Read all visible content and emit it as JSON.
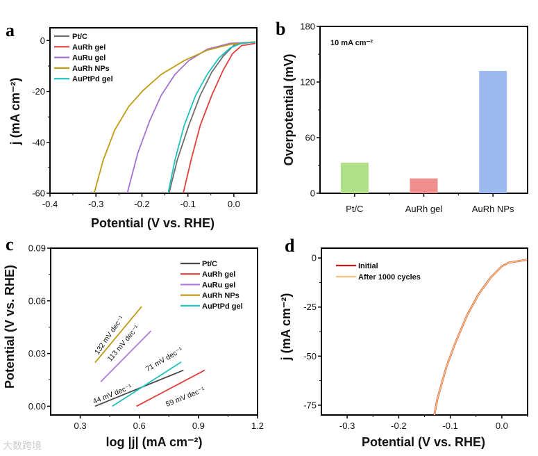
{
  "chart_data": [
    {
      "panel": "a",
      "type": "line",
      "xlabel": "Potential (V vs. RHE)",
      "ylabel": "j (mA cm⁻²)",
      "xlim": [
        -0.4,
        0.05
      ],
      "ylim": [
        -60,
        5
      ],
      "xticks": [
        -0.4,
        -0.3,
        -0.2,
        -0.1,
        0.0
      ],
      "xtick_labels": [
        "-0.4",
        "-0.3",
        "-0.2",
        "-0.1",
        "0.0"
      ],
      "yticks": [
        0,
        -20,
        -40,
        -60
      ],
      "ytick_labels": [
        "0",
        "-20",
        "-40",
        "-60"
      ],
      "legend_position": "top-left",
      "series": [
        {
          "name": "Pt/C",
          "color": "#6e6e6e",
          "x": [
            -0.141,
            -0.123,
            -0.098,
            -0.073,
            -0.048,
            -0.023,
            0.002,
            0.047
          ],
          "y": [
            -60,
            -46.9,
            -33.3,
            -21.5,
            -12.4,
            -6.1,
            -1.5,
            -0.5
          ]
        },
        {
          "name": "AuRh gel",
          "color": "#e0403c",
          "x": [
            -0.11,
            -0.093,
            -0.073,
            -0.048,
            -0.023,
            -0.003,
            0.017,
            0.047
          ],
          "y": [
            -60,
            -46.9,
            -33.3,
            -21.5,
            -11.5,
            -5.2,
            -2.0,
            -1.1
          ]
        },
        {
          "name": "AuRu gel",
          "color": "#a272d0",
          "x": [
            -0.232,
            -0.209,
            -0.183,
            -0.158,
            -0.128,
            -0.098,
            -0.058,
            -0.008,
            0.047
          ],
          "y": [
            -60,
            -44.2,
            -31.5,
            -21.5,
            -13.3,
            -7.9,
            -3.4,
            -1.1,
            -0.6
          ]
        },
        {
          "name": "AuRh NPs",
          "color": "#c09a10",
          "x": [
            -0.304,
            -0.284,
            -0.259,
            -0.229,
            -0.198,
            -0.158,
            -0.108,
            -0.058,
            -0.008,
            0.047
          ],
          "y": [
            -60,
            -46.9,
            -35.1,
            -26.0,
            -19.7,
            -13.3,
            -7.9,
            -3.8,
            -1.5,
            -0.5
          ]
        },
        {
          "name": "AuPtPd gel",
          "color": "#1fc0c0",
          "x": [
            -0.143,
            -0.128,
            -0.108,
            -0.083,
            -0.058,
            -0.033,
            -0.008,
            0.017,
            0.047
          ],
          "y": [
            -60,
            -46.9,
            -33.3,
            -21.5,
            -13.3,
            -7.0,
            -2.9,
            -1.1,
            -0.6
          ]
        }
      ]
    },
    {
      "panel": "b",
      "type": "bar",
      "ylabel": "Overpotential (mV)",
      "annotation": "10 mA cm⁻²",
      "categories": [
        "Pt/C",
        "AuRh gel",
        "AuRh NPs"
      ],
      "values": [
        33,
        16,
        132
      ],
      "colors": [
        "#b1e08b",
        "#f08e8e",
        "#9cbaf0"
      ],
      "ylim": [
        0,
        180
      ],
      "yticks": [
        0,
        60,
        120,
        180
      ],
      "ytick_labels": [
        "0",
        "60",
        "120",
        "180"
      ]
    },
    {
      "panel": "c",
      "type": "line",
      "xlabel": "log |j| (mA cm⁻²)",
      "ylabel": "Potential (V vs. RHE)",
      "xlim": [
        0.15,
        1.2
      ],
      "ylim": [
        -0.005,
        0.09
      ],
      "xticks": [
        0.3,
        0.6,
        0.9,
        1.2
      ],
      "xtick_labels": [
        "0.3",
        "0.6",
        "0.9",
        "1.2"
      ],
      "yticks": [
        0.0,
        0.03,
        0.06,
        0.09
      ],
      "ytick_labels": [
        "0.00",
        "0.03",
        "0.06",
        "0.09"
      ],
      "legend_position": "top-right",
      "series": [
        {
          "name": "Pt/C",
          "color": "#4a4a4a",
          "x": [
            0.375,
            0.824
          ],
          "y": [
            0.0,
            0.0205
          ],
          "tafel": "44 mV dec⁻¹"
        },
        {
          "name": "AuRh gel",
          "color": "#e0403c",
          "x": [
            0.586,
            0.932
          ],
          "y": [
            0.0,
            0.0205
          ],
          "tafel": "59 mV dec⁻¹"
        },
        {
          "name": "AuRu gel",
          "color": "#b07ae0",
          "x": [
            0.404,
            0.659
          ],
          "y": [
            0.0139,
            0.0429
          ],
          "tafel": "113 mV dec⁻¹"
        },
        {
          "name": "AuRh NPs",
          "color": "#c09a10",
          "x": [
            0.375,
            0.612
          ],
          "y": [
            0.0248,
            0.0568
          ],
          "tafel": "132 mV dec⁻¹"
        },
        {
          "name": "AuPtPd gel",
          "color": "#1fc0c0",
          "x": [
            0.463,
            0.813
          ],
          "y": [
            0.0,
            0.0252
          ],
          "tafel": "71 mV dec⁻¹"
        }
      ]
    },
    {
      "panel": "d",
      "type": "line",
      "xlabel": "Potential (V vs. RHE)",
      "ylabel": "j (mA cm⁻²)",
      "xlim": [
        -0.35,
        0.05
      ],
      "ylim": [
        -80,
        5
      ],
      "xticks": [
        -0.3,
        -0.2,
        -0.1,
        0.0
      ],
      "xtick_labels": [
        "-0.3",
        "-0.2",
        "-0.1",
        "0.0"
      ],
      "yticks": [
        0,
        -25,
        -50,
        -75
      ],
      "ytick_labels": [
        "0",
        "-25",
        "-50",
        "-75"
      ],
      "legend_position": "top-left",
      "series": [
        {
          "name": "Initial",
          "color": "#cc1a1a",
          "x": [
            -0.131,
            -0.125,
            -0.107,
            -0.09,
            -0.067,
            -0.045,
            -0.022,
            0,
            0.013,
            0.049
          ],
          "y": [
            -80,
            -71.7,
            -55.1,
            -43.2,
            -29.0,
            -18.4,
            -10.1,
            -4.2,
            -2.4,
            -0.9
          ]
        },
        {
          "name": "After 1000 cycles",
          "color": "#f2c27e",
          "x": [
            -0.131,
            -0.125,
            -0.107,
            -0.09,
            -0.067,
            -0.045,
            -0.022,
            0,
            0.013,
            0.049
          ],
          "y": [
            -80,
            -71.7,
            -55.1,
            -43.2,
            -29.0,
            -18.4,
            -10.1,
            -4.2,
            -2.4,
            -0.9
          ]
        }
      ]
    }
  ],
  "watermark": "大数跨境"
}
